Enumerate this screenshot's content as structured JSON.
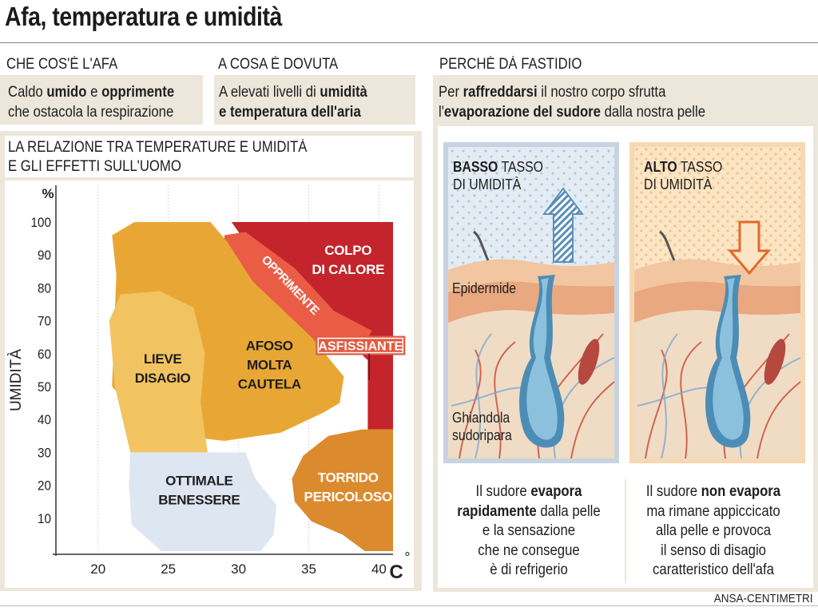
{
  "title": "Afa, temperatura e umidità",
  "section_what": {
    "heading": "CHE COS'È L'AFA",
    "text_parts": [
      "Caldo ",
      "umido",
      " e ",
      "opprimente",
      "che ostacola la respirazione"
    ]
  },
  "section_cause": {
    "heading": "A COSA È DOVUTA",
    "text_parts": [
      "A elevati livelli di ",
      "umidità",
      "e temperatura dell'aria"
    ]
  },
  "section_why": {
    "heading": "PERCHÉ DÀ FASTIDIO",
    "text_parts": [
      "Per ",
      "raffreddarsi",
      " il nostro corpo sfrutta",
      "l'",
      "evaporazione del sudore",
      " dalla nostra pelle"
    ]
  },
  "relation": {
    "heading_line1": "LA RELAZIONE TRA TEMPERATURE E UMIDITÀ",
    "heading_line2": "E GLI EFFETTI SULL'UOMO"
  },
  "chart_data": {
    "type": "area",
    "ylabel": "UMIDITÀ",
    "yunit": "%",
    "xunit": "C°",
    "x_ticks": [
      20,
      25,
      30,
      35,
      40
    ],
    "y_ticks": [
      10,
      20,
      30,
      40,
      50,
      60,
      70,
      80,
      90,
      100
    ],
    "xlim": [
      17,
      41
    ],
    "ylim": [
      0,
      100
    ],
    "grid": "vertical dotted",
    "zones": [
      {
        "label": "COLPO DI CALORE",
        "color": "#c4242b"
      },
      {
        "label": "OPPRIMENTE",
        "color": "#ea5c45"
      },
      {
        "label": "ASFISSIANTE",
        "color": "#e25a42"
      },
      {
        "label": "AFOSO MOLTA CAUTELA",
        "color": "#e8a735"
      },
      {
        "label": "LIEVE DISAGIO",
        "color": "#f2c361"
      },
      {
        "label": "OTTIMALE BENESSERE",
        "color": "#dde6f1"
      },
      {
        "label": "TORRIDO PERICOLOSO",
        "color": "#dc8a2e"
      }
    ]
  },
  "low": {
    "label_bold": "BASSO",
    "label_rest": " TASSO",
    "label_line2": "DI UMIDITÀ",
    "epidermide": "Epidermide",
    "gland_line1": "Ghiandola",
    "gland_line2": "sudoripara",
    "caption_parts": [
      "Il sudore ",
      "evapora",
      "rapidamente",
      " dalla pelle",
      "e la sensazione",
      "che ne consegue",
      "è di refrigerio"
    ]
  },
  "high": {
    "label_bold": "ALTO",
    "label_rest": " TASSO",
    "label_line2": "DI UMIDITÀ",
    "caption_parts": [
      "Il sudore ",
      "non evapora",
      "ma rimane appiccicato",
      "alla pelle e provoca",
      "il senso di disagio",
      "caratteristico dell'afa"
    ]
  },
  "credit": "ANSA-CENTIMETRI",
  "colors": {
    "beige": "#ece7da",
    "heat_red": "#c4242b",
    "orange": "#e8a735",
    "comfort_blue": "#dde6f1",
    "arrow_blue": "#5b8fb8",
    "arrow_orange": "#e06a2c"
  }
}
